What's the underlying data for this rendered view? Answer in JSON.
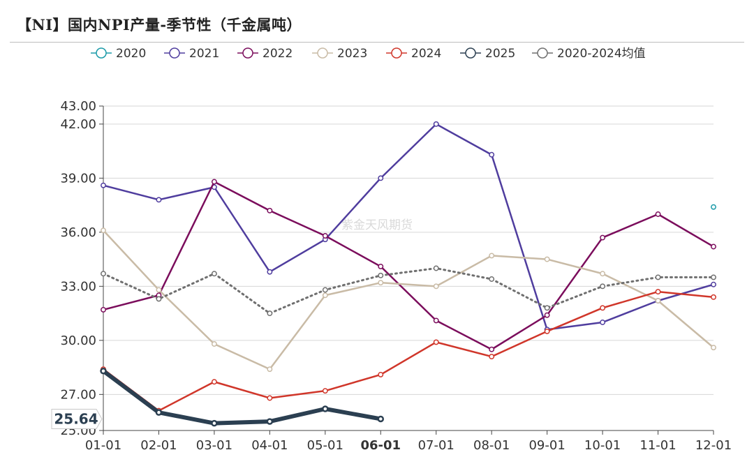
{
  "title": "【NI】国内NPI产量-季节性（千金属吨）",
  "watermark": "紫金天风期货",
  "chart_data": {
    "type": "line",
    "categories": [
      "01-01",
      "02-01",
      "03-01",
      "04-01",
      "05-01",
      "06-01",
      "07-01",
      "08-01",
      "09-01",
      "10-01",
      "11-01",
      "12-01"
    ],
    "highlighted_category": "06-01",
    "y_ticks": [
      "25.00",
      "27.00",
      "30.00",
      "33.00",
      "36.00",
      "39.00",
      "42.00",
      "43.00"
    ],
    "ylim": [
      25,
      43
    ],
    "grid": true,
    "legend_position": "top",
    "pointer_label": "25.64",
    "series": [
      {
        "name": "2020",
        "color": "#1a9aa8",
        "dotted": false,
        "values": [
          null,
          null,
          null,
          null,
          null,
          null,
          null,
          null,
          null,
          null,
          null,
          37.4
        ]
      },
      {
        "name": "2021",
        "color": "#4f3d9e",
        "dotted": false,
        "values": [
          38.6,
          37.8,
          38.5,
          33.8,
          35.6,
          39.0,
          42.0,
          40.3,
          30.6,
          31.0,
          32.2,
          33.1
        ]
      },
      {
        "name": "2022",
        "color": "#7b0d5c",
        "dotted": false,
        "values": [
          31.7,
          32.5,
          38.8,
          37.2,
          35.8,
          34.1,
          31.1,
          29.5,
          31.4,
          35.7,
          37.0,
          35.2
        ]
      },
      {
        "name": "2023",
        "color": "#c9bba6",
        "dotted": false,
        "values": [
          36.1,
          32.8,
          29.8,
          28.4,
          32.5,
          33.2,
          33.0,
          34.7,
          34.5,
          33.7,
          32.2,
          29.6
        ]
      },
      {
        "name": "2024",
        "color": "#d0362a",
        "dotted": false,
        "values": [
          28.4,
          26.1,
          27.7,
          26.8,
          27.2,
          28.1,
          29.9,
          29.1,
          30.5,
          31.8,
          32.7,
          32.4
        ]
      },
      {
        "name": "2025",
        "color": "#2b3f51",
        "dotted": false,
        "thick": true,
        "values": [
          28.3,
          26.0,
          25.4,
          25.5,
          26.2,
          25.64,
          null,
          null,
          null,
          null,
          null,
          null
        ]
      },
      {
        "name": "2020-2024均值",
        "color": "#6f6f6f",
        "dotted": true,
        "values": [
          33.7,
          32.3,
          33.7,
          31.5,
          32.8,
          33.6,
          34.0,
          33.4,
          31.8,
          33.0,
          33.5,
          33.5
        ]
      }
    ]
  }
}
